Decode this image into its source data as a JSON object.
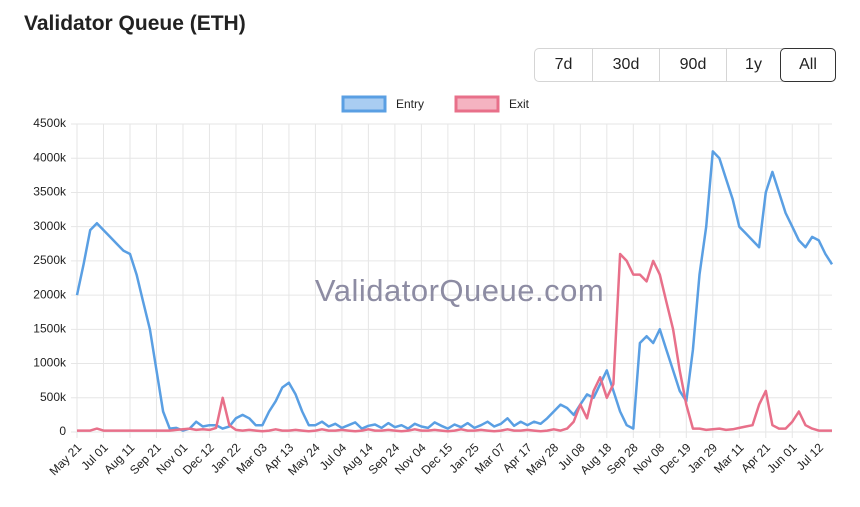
{
  "chart_data": {
    "type": "line",
    "title": "Validator Queue (ETH)",
    "watermark": "ValidatorQueue.com",
    "range_buttons": [
      "7d",
      "30d",
      "90d",
      "1y",
      "All"
    ],
    "active_range": "All",
    "categories": [
      "May 21",
      null,
      null,
      null,
      "Jul 01",
      null,
      null,
      null,
      "Aug 11",
      null,
      null,
      null,
      "Sep 21",
      null,
      null,
      null,
      "Nov 01",
      null,
      null,
      null,
      "Dec 12",
      null,
      null,
      null,
      "Jan 22",
      null,
      null,
      null,
      "Mar 03",
      null,
      null,
      null,
      "Apr 13",
      null,
      null,
      null,
      "May 24",
      null,
      null,
      null,
      "Jul 04",
      null,
      null,
      null,
      "Aug 14",
      null,
      null,
      null,
      "Sep 24",
      null,
      null,
      null,
      "Nov 04",
      null,
      null,
      null,
      "Dec 15",
      null,
      null,
      null,
      "Jan 25",
      null,
      null,
      null,
      "Mar 07",
      null,
      null,
      null,
      "Apr 17",
      null,
      null,
      null,
      "May 28",
      null,
      null,
      null,
      "Jul 08",
      null,
      null,
      null,
      "Aug 18",
      null,
      null,
      null,
      "Sep 28",
      null,
      null,
      null,
      "Nov 08",
      null,
      null,
      null,
      "Dec 19",
      null,
      null,
      null,
      "Jan 29",
      null,
      null,
      null,
      "Mar 11",
      null,
      null,
      null,
      "Apr 21",
      null,
      null,
      null,
      "Jun 01",
      null,
      null,
      null,
      "Jul 12",
      null,
      null
    ],
    "series": [
      {
        "name": "Entry",
        "color": "#5a9fe3",
        "fill": "#a9cdf2",
        "values": [
          2000000,
          2450000,
          2950000,
          3050000,
          2950000,
          2850000,
          2750000,
          2650000,
          2600000,
          2300000,
          1900000,
          1500000,
          900000,
          300000,
          50000,
          60000,
          20000,
          50000,
          150000,
          80000,
          100000,
          100000,
          50000,
          80000,
          200000,
          250000,
          200000,
          100000,
          100000,
          300000,
          450000,
          650000,
          720000,
          550000,
          300000,
          100000,
          100000,
          150000,
          80000,
          120000,
          60000,
          100000,
          140000,
          50000,
          90000,
          110000,
          60000,
          130000,
          70000,
          100000,
          50000,
          120000,
          80000,
          60000,
          140000,
          90000,
          50000,
          110000,
          70000,
          130000,
          60000,
          100000,
          150000,
          80000,
          120000,
          200000,
          90000,
          150000,
          100000,
          150000,
          120000,
          200000,
          300000,
          400000,
          350000,
          250000,
          400000,
          550000,
          500000,
          700000,
          900000,
          600000,
          300000,
          100000,
          50000,
          1300000,
          1400000,
          1300000,
          1500000,
          1200000,
          900000,
          600000,
          450000,
          1200000,
          2300000,
          3000000,
          4100000,
          4000000,
          3700000,
          3400000,
          3000000,
          2900000,
          2800000,
          2700000,
          3500000,
          3800000,
          3500000,
          3200000,
          3000000,
          2800000,
          2700000,
          2850000,
          2800000,
          2600000,
          2450000
        ]
      },
      {
        "name": "Exit",
        "color": "#e8708a",
        "fill": "#f5b3c1",
        "values": [
          20000,
          20000,
          20000,
          50000,
          20000,
          20000,
          20000,
          20000,
          20000,
          20000,
          20000,
          20000,
          20000,
          20000,
          20000,
          30000,
          40000,
          50000,
          30000,
          40000,
          30000,
          60000,
          500000,
          100000,
          30000,
          20000,
          30000,
          20000,
          10000,
          20000,
          40000,
          20000,
          20000,
          30000,
          20000,
          10000,
          20000,
          40000,
          20000,
          20000,
          30000,
          20000,
          10000,
          20000,
          40000,
          20000,
          20000,
          30000,
          20000,
          10000,
          20000,
          40000,
          20000,
          20000,
          30000,
          20000,
          10000,
          20000,
          40000,
          20000,
          20000,
          30000,
          20000,
          10000,
          20000,
          40000,
          20000,
          20000,
          30000,
          20000,
          10000,
          20000,
          40000,
          20000,
          50000,
          150000,
          400000,
          200000,
          600000,
          800000,
          500000,
          700000,
          2600000,
          2500000,
          2300000,
          2300000,
          2200000,
          2500000,
          2300000,
          1900000,
          1500000,
          900000,
          400000,
          50000,
          50000,
          30000,
          40000,
          50000,
          30000,
          40000,
          60000,
          80000,
          100000,
          400000,
          600000,
          100000,
          50000,
          50000,
          150000,
          300000,
          100000,
          50000,
          20000,
          20000,
          20000
        ]
      }
    ],
    "ylim": [
      0,
      4500000
    ],
    "yticks": [
      0,
      {
        "value": 500000,
        "label": "500k"
      },
      {
        "value": 1000000,
        "label": "1000k"
      },
      {
        "value": 1500000,
        "label": "1500k"
      },
      {
        "value": 2000000,
        "label": "2000k"
      },
      {
        "value": 2500000,
        "label": "2500k"
      },
      {
        "value": 3000000,
        "label": "3000k"
      },
      {
        "value": 3500000,
        "label": "3500k"
      },
      {
        "value": 4000000,
        "label": "4000k"
      },
      {
        "value": 4500000,
        "label": "4500k"
      }
    ],
    "grid": true,
    "legend": "top"
  }
}
